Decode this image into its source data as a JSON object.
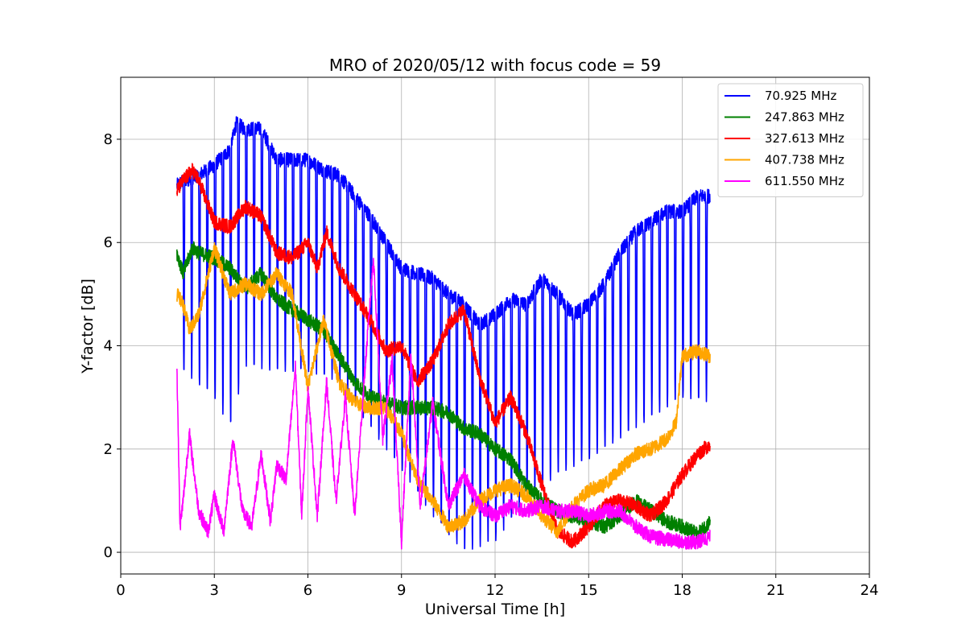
{
  "chart_data": {
    "type": "line",
    "title": "MRO of 2020/05/12 with focus code = 59",
    "xlabel": "Universal Time [h]",
    "ylabel": "Y-factor [dB]",
    "xlim": [
      0,
      24
    ],
    "ylim": [
      -0.42,
      9.2
    ],
    "xticks": [
      0,
      3,
      6,
      9,
      12,
      15,
      18,
      21,
      24
    ],
    "yticks": [
      0,
      2,
      4,
      6,
      8
    ],
    "grid": true,
    "legend_position": "top-right",
    "series": [
      {
        "name": "70.925 MHz",
        "color": "#0000ff",
        "dips": {
          "period_h": 0.25,
          "width_h": 0.05
        },
        "dip_floor": [
          [
            1.8,
            3.6
          ],
          [
            3.0,
            3.0
          ],
          [
            3.5,
            2.4
          ],
          [
            4.0,
            3.6
          ],
          [
            5.0,
            3.5
          ],
          [
            6.0,
            3.5
          ],
          [
            7.0,
            3.3
          ],
          [
            8.0,
            2.4
          ],
          [
            9.0,
            1.6
          ],
          [
            10.0,
            0.7
          ],
          [
            11.0,
            0.0
          ],
          [
            12.0,
            0.2
          ],
          [
            13.0,
            1.0
          ],
          [
            14.0,
            1.5
          ],
          [
            15.0,
            1.8
          ],
          [
            16.0,
            2.2
          ],
          [
            17.0,
            2.6
          ],
          [
            18.0,
            3.0
          ],
          [
            18.9,
            2.9
          ]
        ],
        "x": [
          1.8,
          2.0,
          2.5,
          3.0,
          3.5,
          3.7,
          4.0,
          4.5,
          5.0,
          5.5,
          6.0,
          6.5,
          7.0,
          7.5,
          8.0,
          8.5,
          9.0,
          9.5,
          10.0,
          10.5,
          11.0,
          11.5,
          12.0,
          12.5,
          13.0,
          13.5,
          14.0,
          14.5,
          15.0,
          15.5,
          16.0,
          16.5,
          17.0,
          17.5,
          18.0,
          18.5,
          18.9
        ],
        "y": [
          7.1,
          7.2,
          7.3,
          7.5,
          7.8,
          8.3,
          8.2,
          8.2,
          7.6,
          7.6,
          7.6,
          7.4,
          7.3,
          6.9,
          6.5,
          6.0,
          5.5,
          5.4,
          5.3,
          5.0,
          4.8,
          4.4,
          4.6,
          4.9,
          4.8,
          5.3,
          5.0,
          4.6,
          4.8,
          5.2,
          5.8,
          6.2,
          6.4,
          6.6,
          6.6,
          6.9,
          6.9
        ]
      },
      {
        "name": "247.863 MHz",
        "color": "#008000",
        "x": [
          1.8,
          2.0,
          2.3,
          2.5,
          3.0,
          3.5,
          4.0,
          4.5,
          5.0,
          5.5,
          6.0,
          6.5,
          7.0,
          7.5,
          8.0,
          8.5,
          9.0,
          9.5,
          10.0,
          10.5,
          11.0,
          11.5,
          12.0,
          12.5,
          13.0,
          13.5,
          14.0,
          14.5,
          15.0,
          15.5,
          16.0,
          16.5,
          17.0,
          17.5,
          18.0,
          18.5,
          18.9
        ],
        "y": [
          5.8,
          5.4,
          5.9,
          5.8,
          5.7,
          5.5,
          5.1,
          5.4,
          4.9,
          4.7,
          4.5,
          4.3,
          3.8,
          3.3,
          3.0,
          2.9,
          2.8,
          2.8,
          2.8,
          2.7,
          2.4,
          2.3,
          2.0,
          1.8,
          1.3,
          1.0,
          0.8,
          0.7,
          0.6,
          0.5,
          0.7,
          1.0,
          0.8,
          0.6,
          0.5,
          0.35,
          0.6
        ]
      },
      {
        "name": "327.613 MHz",
        "color": "#ff0000",
        "x": [
          1.8,
          2.0,
          2.3,
          2.5,
          3.0,
          3.5,
          4.0,
          4.5,
          5.0,
          5.5,
          6.0,
          6.3,
          6.6,
          7.0,
          7.5,
          8.0,
          8.5,
          9.0,
          9.5,
          10.0,
          10.5,
          11.0,
          11.5,
          12.0,
          12.5,
          13.0,
          13.5,
          14.0,
          14.5,
          15.0,
          15.5,
          16.0,
          16.5,
          17.0,
          17.5,
          18.0,
          18.5,
          18.9
        ],
        "y": [
          7.0,
          7.2,
          7.4,
          7.2,
          6.4,
          6.3,
          6.7,
          6.5,
          5.8,
          5.7,
          6.0,
          5.5,
          6.2,
          5.5,
          5.0,
          4.5,
          3.9,
          4.0,
          3.3,
          3.7,
          4.4,
          4.7,
          3.4,
          2.5,
          3.0,
          2.3,
          1.3,
          0.4,
          0.2,
          0.5,
          0.9,
          1.0,
          0.9,
          0.7,
          1.0,
          1.5,
          1.9,
          2.1
        ]
      },
      {
        "name": "407.738 MHz",
        "color": "#ffa500",
        "x": [
          1.8,
          2.0,
          2.2,
          2.5,
          3.0,
          3.5,
          4.0,
          4.5,
          5.0,
          5.5,
          6.0,
          6.5,
          7.0,
          7.5,
          8.0,
          8.5,
          9.0,
          9.5,
          10.0,
          10.5,
          11.0,
          11.5,
          12.0,
          12.5,
          13.0,
          13.5,
          14.0,
          14.5,
          15.0,
          15.5,
          16.0,
          16.5,
          17.0,
          17.5,
          17.8,
          18.0,
          18.5,
          18.9
        ],
        "y": [
          5.0,
          4.8,
          4.3,
          4.6,
          5.9,
          5.0,
          5.2,
          5.0,
          5.4,
          5.0,
          3.2,
          4.5,
          3.3,
          2.9,
          2.8,
          2.8,
          2.3,
          1.4,
          1.0,
          0.5,
          0.6,
          1.0,
          1.2,
          1.3,
          1.1,
          0.7,
          0.4,
          0.9,
          1.2,
          1.3,
          1.6,
          1.9,
          2.0,
          2.2,
          2.5,
          3.8,
          3.9,
          3.8
        ]
      },
      {
        "name": "611.550 MHz",
        "color": "#ff00ff",
        "x": [
          1.8,
          1.9,
          2.0,
          2.2,
          2.5,
          2.8,
          3.0,
          3.3,
          3.6,
          3.9,
          4.2,
          4.5,
          4.8,
          5.0,
          5.3,
          5.6,
          5.8,
          6.0,
          6.3,
          6.6,
          6.9,
          7.2,
          7.5,
          7.8,
          8.1,
          8.4,
          8.7,
          9.0,
          9.3,
          9.6,
          10.0,
          10.5,
          11.0,
          11.5,
          12.0,
          12.5,
          13.0,
          13.5,
          14.0,
          14.5,
          15.0,
          15.5,
          16.0,
          16.5,
          17.0,
          17.5,
          18.0,
          18.5,
          18.9
        ],
        "y": [
          3.6,
          0.5,
          1.0,
          2.3,
          0.8,
          0.4,
          1.1,
          0.4,
          2.2,
          0.8,
          0.5,
          1.9,
          0.6,
          1.7,
          1.4,
          3.6,
          0.7,
          3.2,
          0.7,
          3.3,
          1.0,
          3.0,
          0.7,
          3.3,
          5.7,
          2.2,
          3.7,
          0.2,
          3.8,
          0.9,
          2.9,
          0.9,
          1.5,
          0.9,
          0.7,
          0.9,
          0.8,
          0.9,
          0.8,
          0.8,
          0.7,
          0.8,
          0.8,
          0.5,
          0.3,
          0.25,
          0.2,
          0.2,
          0.3
        ]
      }
    ]
  }
}
